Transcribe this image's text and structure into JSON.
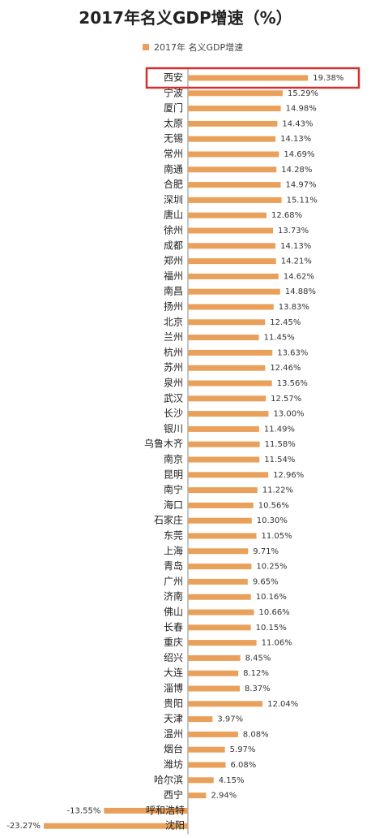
{
  "chart_data": {
    "type": "bar",
    "orientation": "horizontal",
    "title": "2017年名义GDP增速（%）",
    "legend": {
      "position": "top",
      "entries": [
        "2017年 名义GDP增速"
      ]
    },
    "series": [
      {
        "name": "2017年 名义GDP增速",
        "color": "#E9A05A"
      }
    ],
    "value_suffix": "%",
    "highlight": {
      "category": "西安",
      "color": "#D32F2F"
    },
    "categories": [
      "西安",
      "宁波",
      "厦门",
      "太原",
      "无锡",
      "常州",
      "南通",
      "合肥",
      "深圳",
      "唐山",
      "徐州",
      "成都",
      "郑州",
      "福州",
      "南昌",
      "扬州",
      "北京",
      "兰州",
      "杭州",
      "苏州",
      "泉州",
      "武汉",
      "长沙",
      "银川",
      "乌鲁木齐",
      "南京",
      "昆明",
      "南宁",
      "海口",
      "石家庄",
      "东莞",
      "上海",
      "青岛",
      "广州",
      "济南",
      "佛山",
      "长春",
      "重庆",
      "绍兴",
      "大连",
      "淄博",
      "贵阳",
      "天津",
      "温州",
      "烟台",
      "潍坊",
      "哈尔滨",
      "西宁",
      "呼和浩特",
      "沈阳"
    ],
    "values": [
      19.38,
      15.29,
      14.98,
      14.43,
      14.13,
      14.69,
      14.28,
      14.97,
      15.11,
      12.68,
      13.73,
      14.13,
      14.21,
      14.62,
      14.88,
      13.83,
      12.45,
      11.45,
      13.63,
      12.46,
      13.56,
      12.57,
      13.0,
      11.49,
      11.58,
      11.54,
      12.96,
      11.22,
      10.56,
      10.3,
      11.05,
      9.71,
      10.25,
      9.65,
      10.16,
      10.66,
      10.15,
      11.06,
      8.45,
      8.12,
      8.37,
      12.04,
      3.97,
      8.08,
      5.97,
      6.08,
      4.15,
      2.94,
      -13.55,
      -23.27
    ],
    "value_labels": [
      "19.38%",
      "15.29%",
      "14.98%",
      "14.43%",
      "14.13%",
      "14.69%",
      "14.28%",
      "14.97%",
      "15.11%",
      "12.68%",
      "13.73%",
      "14.13%",
      "14.21%",
      "14.62%",
      "14.88%",
      "13.83%",
      "12.45%",
      "11.45%",
      "13.63%",
      "12.46%",
      "13.56%",
      "12.57%",
      "13.00%",
      "11.49%",
      "11.58%",
      "11.54%",
      "12.96%",
      "11.22%",
      "10.56%",
      "10.30%",
      "11.05%",
      "9.71%",
      "10.25%",
      "9.65%",
      "10.16%",
      "10.66%",
      "10.15%",
      "11.06%",
      "8.45%",
      "8.12%",
      "8.37%",
      "12.04%",
      "3.97%",
      "8.08%",
      "5.97%",
      "6.08%",
      "4.15%",
      "2.94%",
      "-13.55%",
      "-23.27%"
    ]
  }
}
